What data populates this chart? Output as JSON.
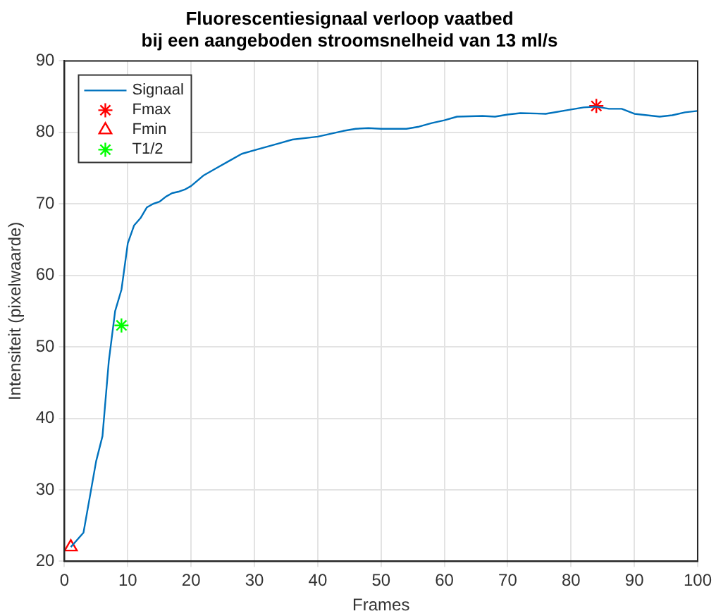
{
  "chart_data": {
    "type": "line",
    "title": "Fluorescentiesignaal verloop vaatbed\nbij een aangeboden stroomsnelheid van 13 ml/s",
    "xlabel": "Frames",
    "ylabel": "Intensiteit (pixelwaarde)",
    "xlim": [
      0,
      100
    ],
    "xticks": [
      0,
      10,
      20,
      30,
      40,
      50,
      60,
      70,
      80,
      90,
      100
    ],
    "ylim": [
      20,
      90
    ],
    "yticks": [
      20,
      30,
      40,
      50,
      60,
      70,
      80,
      90
    ],
    "grid": true,
    "legend": "top left",
    "series": [
      {
        "name": "Signaal",
        "color": "#0072bd",
        "marker": "none",
        "x": [
          1,
          2,
          3,
          4,
          5,
          6,
          7,
          8,
          9,
          10,
          11,
          12,
          13,
          14,
          15,
          16,
          17,
          18,
          19,
          20,
          22,
          24,
          26,
          28,
          30,
          32,
          34,
          36,
          40,
          42,
          44,
          46,
          48,
          50,
          54,
          56,
          58,
          60,
          62,
          66,
          68,
          70,
          72,
          76,
          80,
          82,
          84,
          86,
          88,
          90,
          92,
          94,
          96,
          98,
          100
        ],
        "values": [
          22,
          23,
          24,
          29,
          34,
          37.5,
          48,
          55,
          58,
          64.5,
          67,
          68,
          69.5,
          70,
          70.3,
          71,
          71.5,
          71.7,
          72,
          72.5,
          74,
          75,
          76,
          77,
          77.5,
          78,
          78.5,
          79,
          79.4,
          79.8,
          80.2,
          80.5,
          80.6,
          80.5,
          80.5,
          80.8,
          81.3,
          81.7,
          82.2,
          82.3,
          82.2,
          82.5,
          82.7,
          82.6,
          83.2,
          83.5,
          83.6,
          83.3,
          83.3,
          82.6,
          82.4,
          82.2,
          82.4,
          82.8,
          83
        ]
      },
      {
        "name": "Fmax",
        "type": "scatter",
        "color": "#ff0000",
        "marker": "cross",
        "x": [
          84
        ],
        "values": [
          83.7
        ]
      },
      {
        "name": "Fmin",
        "type": "scatter",
        "color": "#ff0000",
        "marker": "triangle",
        "x": [
          1
        ],
        "values": [
          22
        ]
      },
      {
        "name": "T1/2",
        "type": "scatter",
        "color": "#00ff00",
        "marker": "cross",
        "x": [
          9
        ],
        "values": [
          53
        ]
      }
    ]
  }
}
